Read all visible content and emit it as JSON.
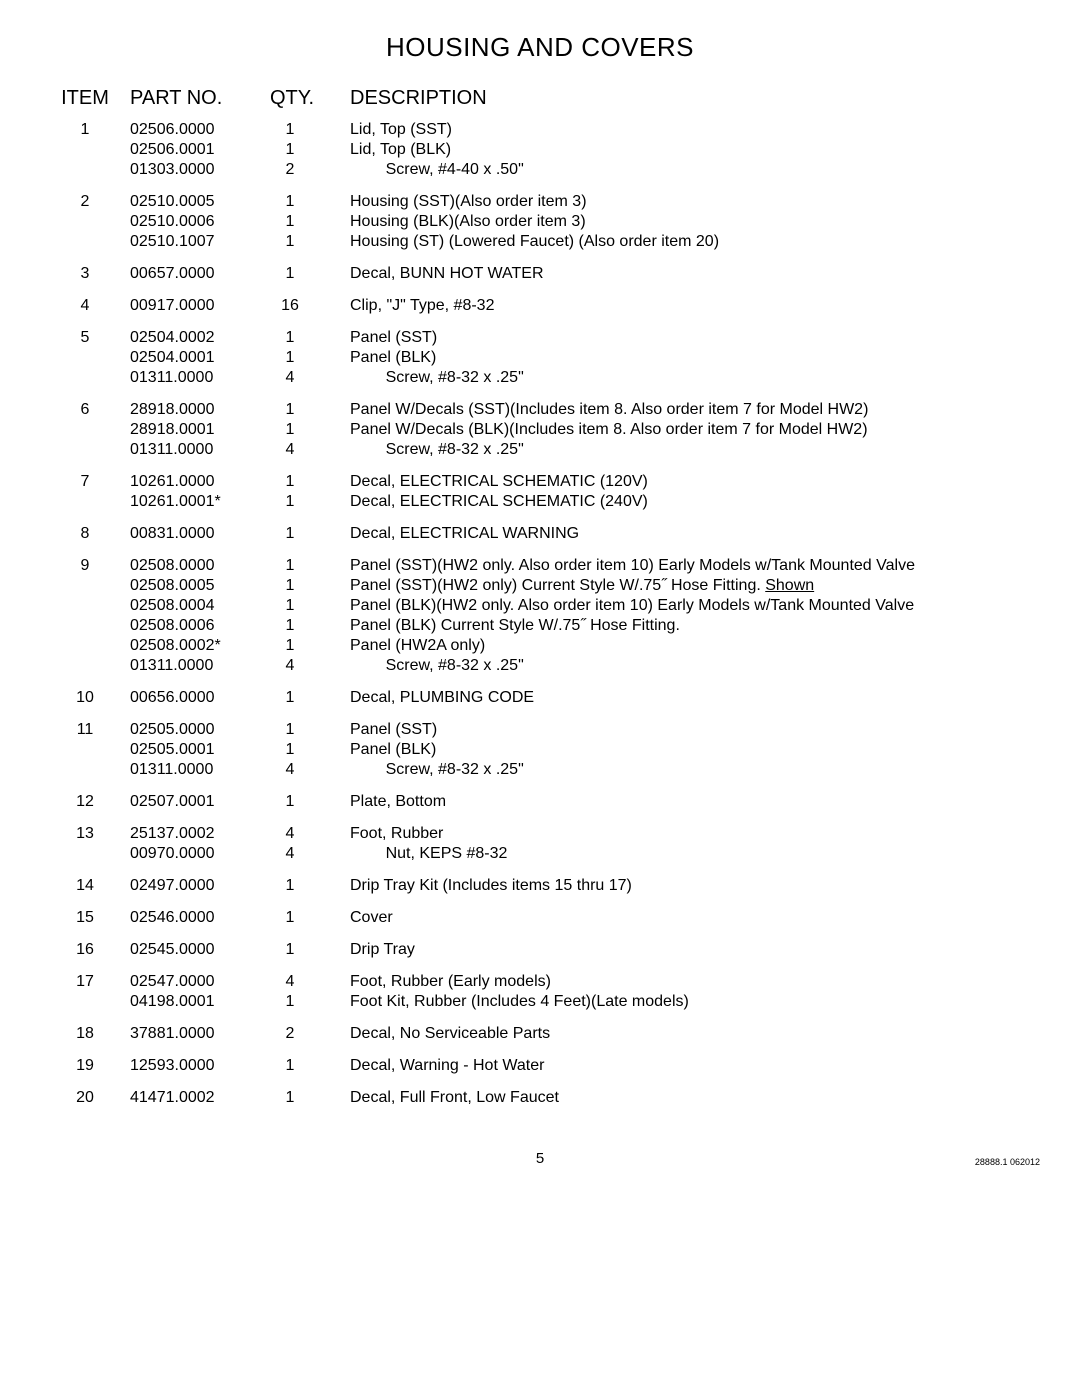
{
  "title": "HOUSING AND COVERS",
  "headers": {
    "item": "ITEM",
    "part": "PART NO.",
    "qty": "QTY.",
    "desc": "DESCRIPTION"
  },
  "rows": [
    {
      "item": "1",
      "parts": [
        "02506.0000",
        "02506.0001",
        "01303.0000"
      ],
      "qtys": [
        "1",
        "1",
        "2"
      ],
      "descs": [
        "Lid, Top (SST)",
        "Lid, Top (BLK)",
        "        Screw, #4-40 x .50\""
      ]
    },
    {
      "item": "2",
      "parts": [
        "02510.0005",
        "02510.0006",
        "02510.1007"
      ],
      "qtys": [
        "1",
        "1",
        "1"
      ],
      "descs": [
        "Housing (SST)(Also order item 3)",
        "Housing (BLK)(Also order item 3)",
        "Housing (ST) (Lowered Faucet) (Also order item 20)"
      ]
    },
    {
      "item": "3",
      "parts": [
        "00657.0000"
      ],
      "qtys": [
        "1"
      ],
      "descs": [
        "Decal, BUNN HOT WATER"
      ]
    },
    {
      "item": "4",
      "parts": [
        "00917.0000"
      ],
      "qtys": [
        "16"
      ],
      "descs": [
        "Clip, \"J\" Type, #8-32"
      ]
    },
    {
      "item": "5",
      "parts": [
        "02504.0002",
        "02504.0001",
        "01311.0000"
      ],
      "qtys": [
        "1",
        "1",
        "4"
      ],
      "descs": [
        "Panel (SST)",
        "Panel (BLK)",
        "        Screw, #8-32 x .25\""
      ]
    },
    {
      "item": "6",
      "parts": [
        "28918.0000",
        "28918.0001",
        "01311.0000"
      ],
      "qtys": [
        "1",
        "1",
        "4"
      ],
      "descs": [
        "Panel W/Decals (SST)(Includes item 8. Also order item 7 for Model HW2)",
        "Panel W/Decals (BLK)(Includes item 8. Also order item 7 for Model HW2)",
        "        Screw, #8-32 x .25\""
      ]
    },
    {
      "item": "7",
      "parts": [
        "10261.0000",
        "10261.0001*"
      ],
      "qtys": [
        "1",
        "1"
      ],
      "descs": [
        "Decal, ELECTRICAL SCHEMATIC (120V)",
        "Decal, ELECTRICAL SCHEMATIC (240V)"
      ]
    },
    {
      "item": "8",
      "parts": [
        "00831.0000"
      ],
      "qtys": [
        "1"
      ],
      "descs": [
        "Decal, ELECTRICAL WARNING"
      ]
    },
    {
      "item": "9",
      "parts": [
        "02508.0000",
        "02508.0005",
        "02508.0004",
        "02508.0006",
        "02508.0002*",
        "01311.0000"
      ],
      "qtys": [
        "1",
        "1",
        "1",
        "1",
        "1",
        "4"
      ],
      "descs": [
        "Panel (SST)(HW2 only. Also order item 10) Early Models w/Tank Mounted Valve",
        "__SHOWN__",
        "Panel (BLK)(HW2 only. Also order item 10) Early Models w/Tank Mounted Valve",
        "Panel (BLK) Current Style W/.75˝ Hose Fitting.",
        "Panel (HW2A only)",
        "        Screw, #8-32 x .25\""
      ]
    },
    {
      "item": "10",
      "parts": [
        "00656.0000"
      ],
      "qtys": [
        "1"
      ],
      "descs": [
        "Decal, PLUMBING CODE"
      ]
    },
    {
      "item": "11",
      "parts": [
        "02505.0000",
        "02505.0001",
        "01311.0000"
      ],
      "qtys": [
        "1",
        "1",
        "4"
      ],
      "descs": [
        "Panel (SST)",
        "Panel (BLK)",
        "        Screw, #8-32 x .25\""
      ]
    },
    {
      "item": "12",
      "parts": [
        "02507.0001"
      ],
      "qtys": [
        "1"
      ],
      "descs": [
        "Plate, Bottom"
      ]
    },
    {
      "item": "13",
      "parts": [
        "25137.0002",
        "00970.0000"
      ],
      "qtys": [
        "4",
        "4"
      ],
      "descs": [
        "Foot, Rubber",
        "        Nut, KEPS #8-32"
      ]
    },
    {
      "item": "14",
      "parts": [
        "02497.0000"
      ],
      "qtys": [
        "1"
      ],
      "descs": [
        "Drip Tray Kit (Includes items 15 thru 17)"
      ]
    },
    {
      "item": "15",
      "parts": [
        "02546.0000"
      ],
      "qtys": [
        "1"
      ],
      "descs": [
        "Cover"
      ]
    },
    {
      "item": "16",
      "parts": [
        "02545.0000"
      ],
      "qtys": [
        "1"
      ],
      "descs": [
        "Drip Tray"
      ]
    },
    {
      "item": "17",
      "parts": [
        "02547.0000",
        "04198.0001"
      ],
      "qtys": [
        "4",
        "1"
      ],
      "descs": [
        "Foot, Rubber (Early models)",
        "Foot Kit, Rubber (Includes 4 Feet)(Late models)"
      ]
    },
    {
      "item": "18",
      "parts": [
        "37881.0000"
      ],
      "qtys": [
        "2"
      ],
      "descs": [
        "Decal, No Serviceable Parts"
      ]
    },
    {
      "item": "19",
      "parts": [
        "12593.0000"
      ],
      "qtys": [
        "1"
      ],
      "descs": [
        "Decal, Warning - Hot Water"
      ]
    },
    {
      "item": "20",
      "parts": [
        "41471.0002"
      ],
      "qtys": [
        "1"
      ],
      "descs": [
        "Decal, Full Front, Low Faucet"
      ]
    }
  ],
  "shown_line_prefix": "Panel (SST)(HW2 only) Current Style W/.75˝ Hose Fitting. ",
  "shown_word": "Shown",
  "page_number": "5",
  "doc_code": "28888.1 062012",
  "style": {
    "background": "#ffffff",
    "text_color": "#000000",
    "title_fontsize": 26,
    "header_fontsize": 20,
    "body_fontsize": 16,
    "line_height": 20
  }
}
